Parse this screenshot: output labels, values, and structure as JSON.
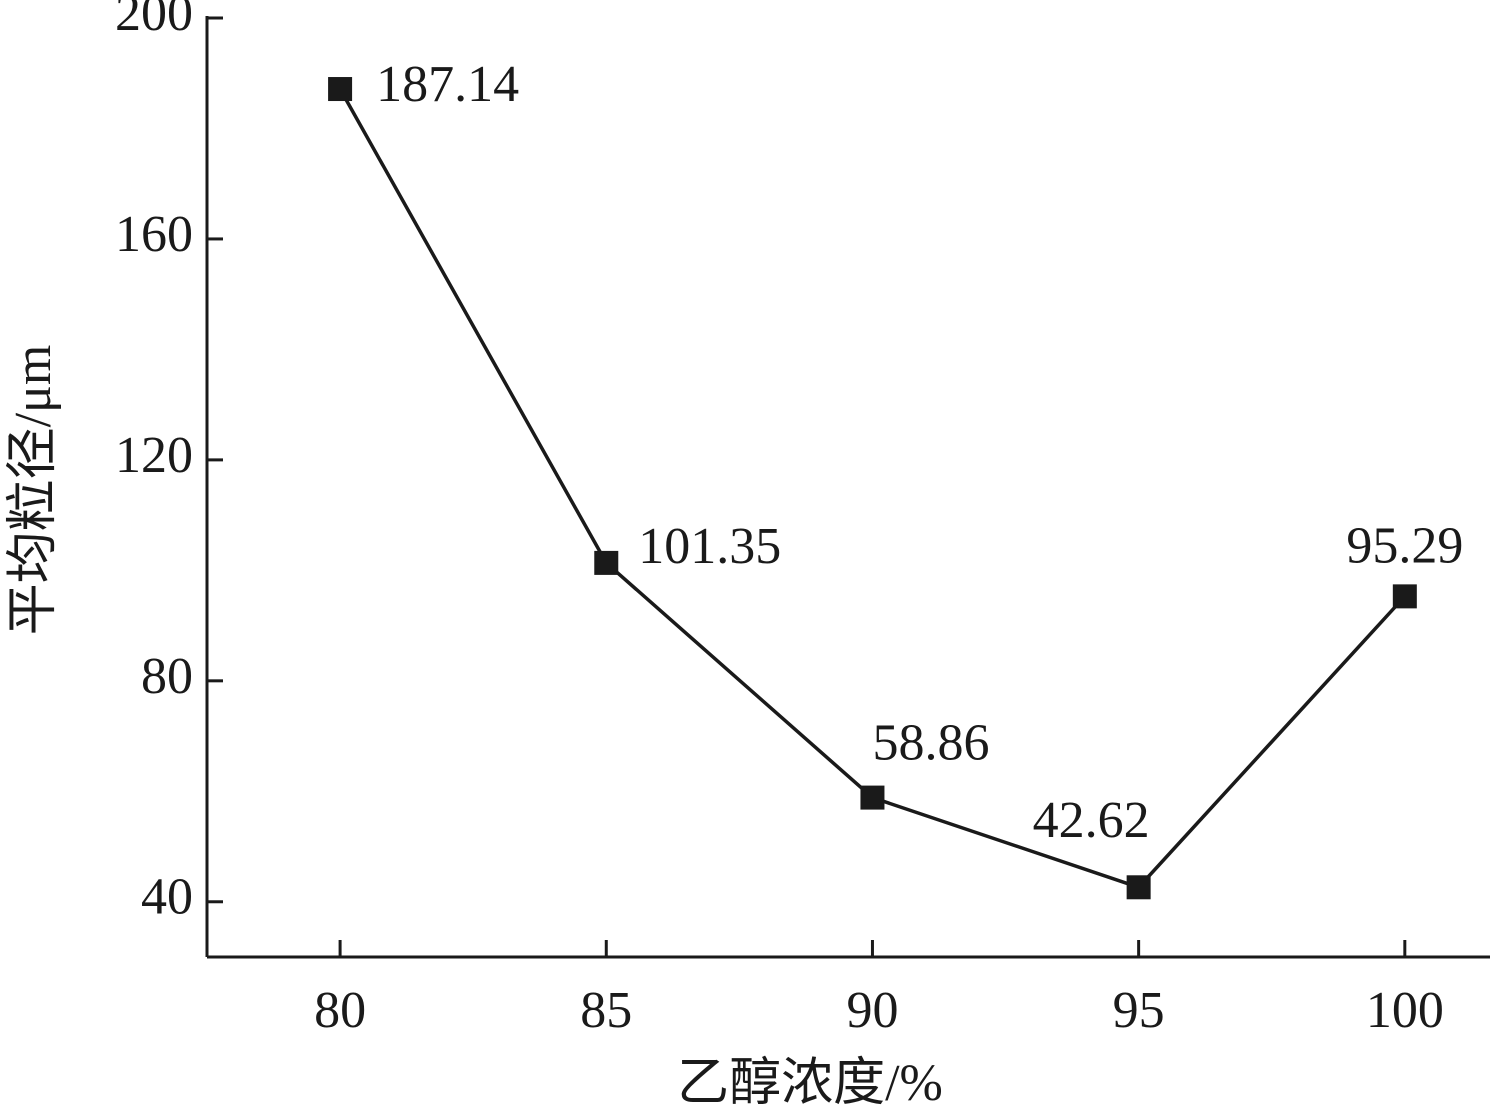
{
  "chart_data": {
    "type": "line",
    "x_label": "乙醇浓度/%",
    "y_label": "平均粒径/μm",
    "x": [
      80,
      85,
      90,
      95,
      100
    ],
    "series": [
      {
        "color": "#1a1a1a",
        "values": [
          187.14,
          101.35,
          58.86,
          42.62,
          95.29
        ]
      }
    ],
    "xlim": [
      77.5,
      101.6
    ],
    "xticks": [
      80,
      85,
      90,
      95,
      100
    ],
    "ylim": [
      30,
      200
    ],
    "yticks": [
      40,
      80,
      120,
      160,
      200
    ],
    "grid": false
  }
}
